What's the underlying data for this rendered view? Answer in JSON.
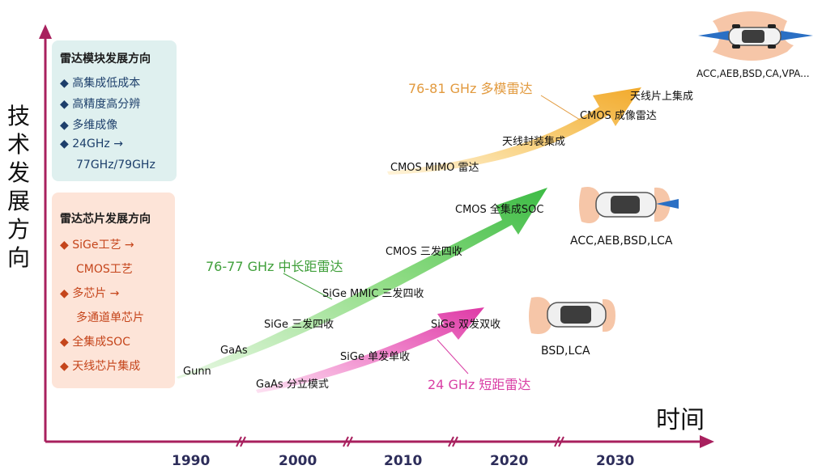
{
  "axes": {
    "y_label": "技术发展方向",
    "x_label": "时间",
    "years": [
      "1990",
      "2000",
      "2010",
      "2020",
      "2030"
    ]
  },
  "module_panel": {
    "title": "雷达模块发展方向",
    "items": [
      "高集成低成本",
      "高精度高分辨",
      "多维成像",
      "24GHz →",
      "77GHz/79GHz"
    ]
  },
  "chip_panel": {
    "title": "雷达芯片发展方向",
    "items": [
      "SiGe工艺 →",
      "CMOS工艺",
      "多芯片 →",
      "多通道单芯片",
      "全集成SOC",
      "天线芯片集成"
    ]
  },
  "arrows": {
    "long_range": {
      "title": "76-77 GHz 中长距雷达",
      "steps": [
        "Gunn",
        "GaAs",
        "SiGe 三发四收",
        "SiGe MMIC 三发四收",
        "CMOS 三发四收",
        "CMOS 全集成SOC"
      ]
    },
    "multimode": {
      "title": "76-81 GHz 多模雷达",
      "steps": [
        "CMOS MIMO 雷达",
        "天线封装集成",
        "CMOS 成像雷达",
        "天线片上集成"
      ]
    },
    "short_range": {
      "title": "24 GHz 短距雷达",
      "steps": [
        "GaAs 分立模式",
        "SiGe 单发单收",
        "SiGe 双发双收"
      ]
    }
  },
  "cars": {
    "top": "ACC,AEB,BSD,CA,VPA...",
    "middle": "ACC,AEB,BSD,LCA",
    "bottom": "BSD,LCA"
  },
  "colors": {
    "axis": "#a8205e",
    "green": "#5cc95a",
    "orange": "#f5b94a",
    "pink": "#e64fb5",
    "radar_zone": "#f6c6a8",
    "radar_beam": "#2a6fc4"
  }
}
